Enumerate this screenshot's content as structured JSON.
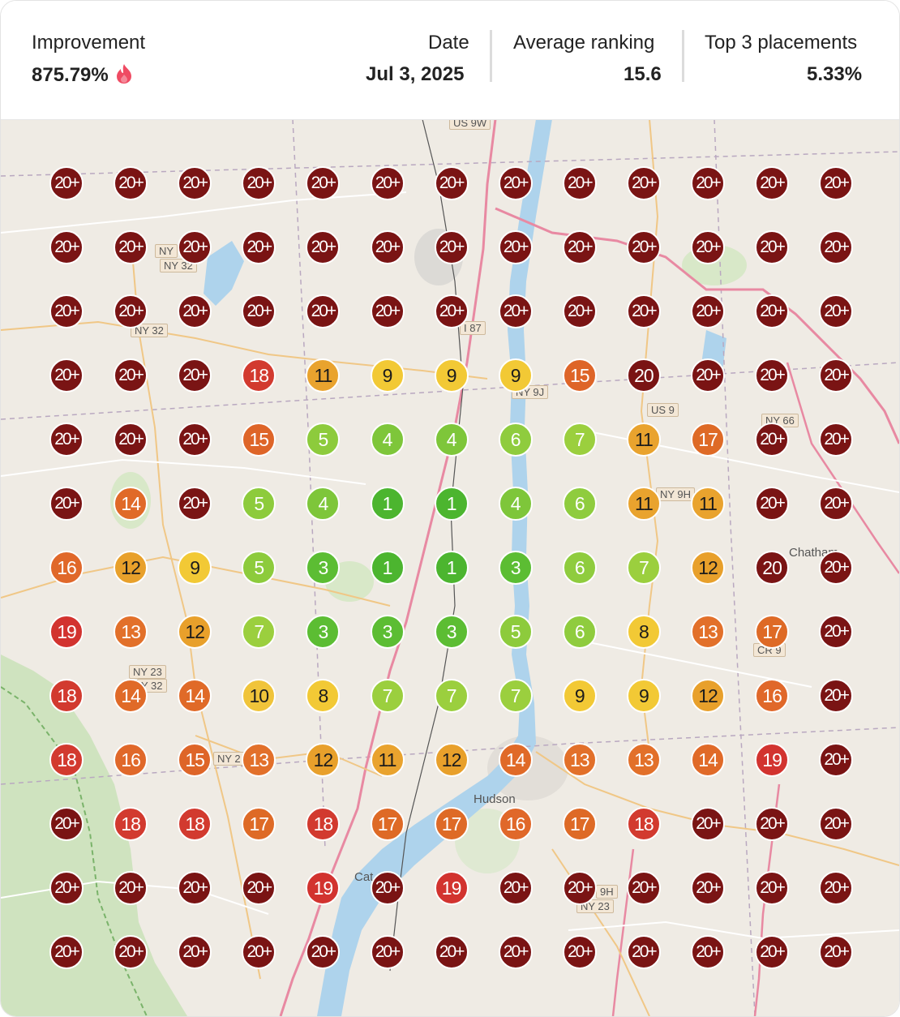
{
  "stats": {
    "improvement": {
      "label": "Improvement",
      "value": "875.79%",
      "icon": "flame-icon"
    },
    "date": {
      "label": "Date",
      "value": "Jul 3, 2025"
    },
    "average_ranking": {
      "label": "Average ranking",
      "value": "15.6"
    },
    "top3": {
      "label": "Top 3 placements",
      "value": "5.33%"
    }
  },
  "map_labels": {
    "us9w": "US 9W",
    "ny32a": "NY",
    "ny32b": "NY 32",
    "ny32c": "NY 32",
    "i87": "I 87",
    "ny9j": "NY 9J",
    "us9": "US 9",
    "ny66": "NY 66",
    "ny9h": "NY 9H",
    "ny23a": "NY 23",
    "ny23b": "Y 32",
    "ny2": "NY 2",
    "cr9": "CR 9",
    "ny9hb": "9H",
    "ny23c": "NY 23",
    "hudson": "Hudson",
    "chatham": "Chatham",
    "cat": "Cat"
  },
  "grid": [
    [
      "20+",
      "20+",
      "20+",
      "20+",
      "20+",
      "20+",
      "20+",
      "20+",
      "20+",
      "20+",
      "20+",
      "20+",
      "20+"
    ],
    [
      "20+",
      "20+",
      "20+",
      "20+",
      "20+",
      "20+",
      "20+",
      "20+",
      "20+",
      "20+",
      "20+",
      "20+",
      "20+"
    ],
    [
      "20+",
      "20+",
      "20+",
      "20+",
      "20+",
      "20+",
      "20+",
      "20+",
      "20+",
      "20+",
      "20+",
      "20+",
      "20+"
    ],
    [
      "20+",
      "20+",
      "20+",
      "18",
      "11",
      "9",
      "9",
      "9",
      "15",
      "20",
      "20+",
      "20+",
      "20+"
    ],
    [
      "20+",
      "20+",
      "20+",
      "15",
      "5",
      "4",
      "4",
      "6",
      "7",
      "11",
      "17",
      "20+",
      "20+"
    ],
    [
      "20+",
      "14",
      "20+",
      "5",
      "4",
      "1",
      "1",
      "4",
      "6",
      "11",
      "11",
      "20+",
      "20+"
    ],
    [
      "16",
      "12",
      "9",
      "5",
      "3",
      "1",
      "1",
      "3",
      "6",
      "7",
      "12",
      "20",
      "20+"
    ],
    [
      "19",
      "13",
      "12",
      "7",
      "3",
      "3",
      "3",
      "5",
      "6",
      "8",
      "13",
      "17",
      "20+"
    ],
    [
      "18",
      "14",
      "14",
      "10",
      "8",
      "7",
      "7",
      "7",
      "9",
      "9",
      "12",
      "16",
      "20+"
    ],
    [
      "18",
      "16",
      "15",
      "13",
      "12",
      "11",
      "12",
      "14",
      "13",
      "13",
      "14",
      "19",
      "20+"
    ],
    [
      "20+",
      "18",
      "18",
      "17",
      "18",
      "17",
      "17",
      "16",
      "17",
      "18",
      "20+",
      "20+",
      "20+"
    ],
    [
      "20+",
      "20+",
      "20+",
      "20+",
      "19",
      "20+",
      "19",
      "20+",
      "20+",
      "20+",
      "20+",
      "20+",
      "20+"
    ],
    [
      "20+",
      "20+",
      "20+",
      "20+",
      "20+",
      "20+",
      "20+",
      "20+",
      "20+",
      "20+",
      "20+",
      "20+",
      "20+"
    ]
  ],
  "rank_colors": {
    "1": "#4cb52f",
    "3": "#5cbd33",
    "4": "#7ec63a",
    "5": "#8dcb3c",
    "6": "#8fcc3e",
    "7": "#9bcf3e",
    "8": "#f2c935",
    "9": "#f2c935",
    "10": "#f0c43a",
    "11": "#e9a32e",
    "12": "#e8a02b",
    "13": "#e2702a",
    "14": "#e06a28",
    "15": "#de6528",
    "16": "#e0682a",
    "17": "#de6a26",
    "18": "#d23a2f",
    "19": "#d2332f",
    "20": "#7a1414",
    "20+": "#7a1414"
  }
}
